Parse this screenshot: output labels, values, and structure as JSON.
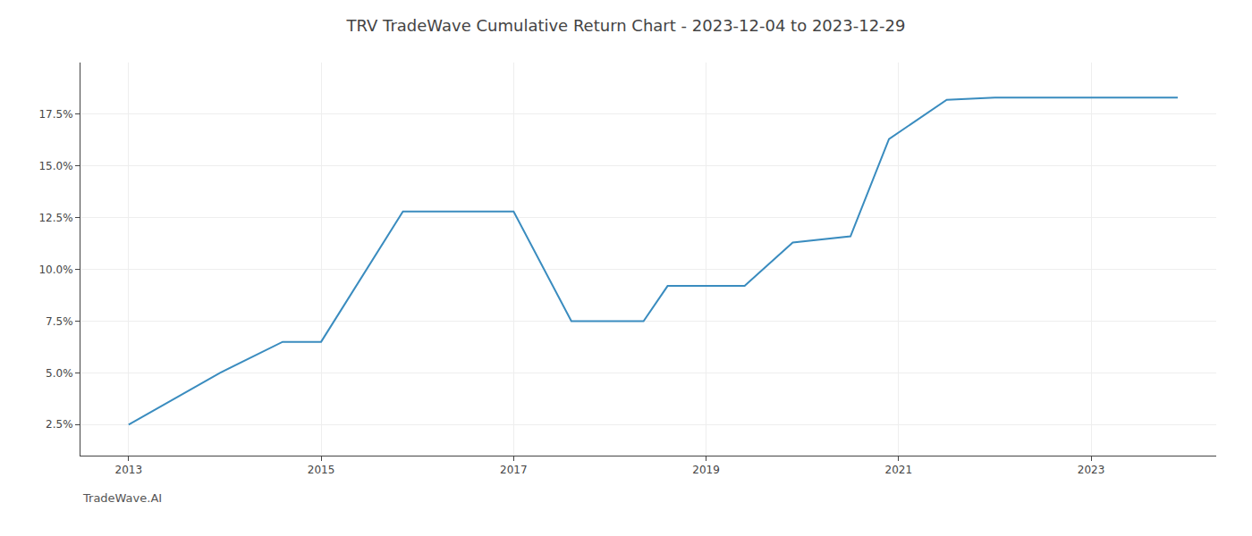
{
  "chart_data": {
    "type": "line",
    "title": "TRV TradeWave Cumulative Return Chart - 2023-12-04 to 2023-12-29",
    "annotations": [
      {
        "text": "TradeWave.AI"
      }
    ],
    "x": [
      2013.0,
      2013.95,
      2014.6,
      2015.0,
      2015.85,
      2016.85,
      2017.0,
      2017.6,
      2018.35,
      2018.6,
      2018.9,
      2019.4,
      2019.9,
      2020.5,
      2020.9,
      2021.5,
      2022.0,
      2022.5,
      2022.85,
      2023.0,
      2023.9
    ],
    "values": [
      0.025,
      0.05,
      0.065,
      0.065,
      0.128,
      0.128,
      0.128,
      0.075,
      0.075,
      0.092,
      0.092,
      0.092,
      0.113,
      0.116,
      0.163,
      0.182,
      0.183,
      0.183,
      0.183,
      0.183,
      0.183
    ],
    "color": "#3a8cbf",
    "xlim": [
      2012.5,
      2024.3
    ],
    "xticks": [
      2013,
      2015,
      2017,
      2019,
      2021,
      2023
    ],
    "ylim": [
      0.01,
      0.2
    ],
    "yticks": [
      {
        "value": 0.025,
        "label": "2.5%"
      },
      {
        "value": 0.05,
        "label": "5.0%"
      },
      {
        "value": 0.075,
        "label": "7.5%"
      },
      {
        "value": 0.1,
        "label": "10.0%"
      },
      {
        "value": 0.125,
        "label": "12.5%"
      },
      {
        "value": 0.15,
        "label": "15.0%"
      },
      {
        "value": 0.175,
        "label": "17.5%"
      }
    ],
    "grid": true
  }
}
